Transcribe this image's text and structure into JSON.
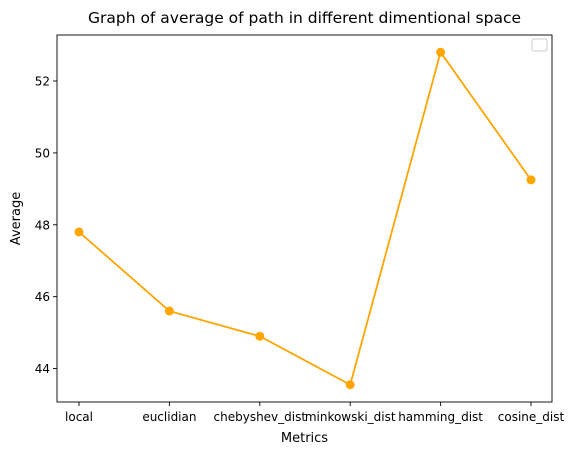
{
  "chart_data": {
    "type": "line",
    "title": "Graph of average of path in different dimentional space",
    "xlabel": "Metrics",
    "ylabel": "Average",
    "categories": [
      "local",
      "euclidian",
      "chebyshev_dist",
      "minkowski_dist",
      "hamming_dist",
      "cosine_dist"
    ],
    "series": [
      {
        "values": [
          47.8,
          45.6,
          44.9,
          43.55,
          52.8,
          49.25
        ],
        "color": "#ffa500",
        "marker": "circle"
      }
    ],
    "ylim": [
      43.07,
      53.28
    ],
    "yticks": [
      44,
      46,
      48,
      50,
      52
    ],
    "ytick_labels": [
      "44",
      "46",
      "48",
      "50",
      "52"
    ],
    "grid": false,
    "legend": {
      "placement": "top-right",
      "entries": []
    }
  }
}
